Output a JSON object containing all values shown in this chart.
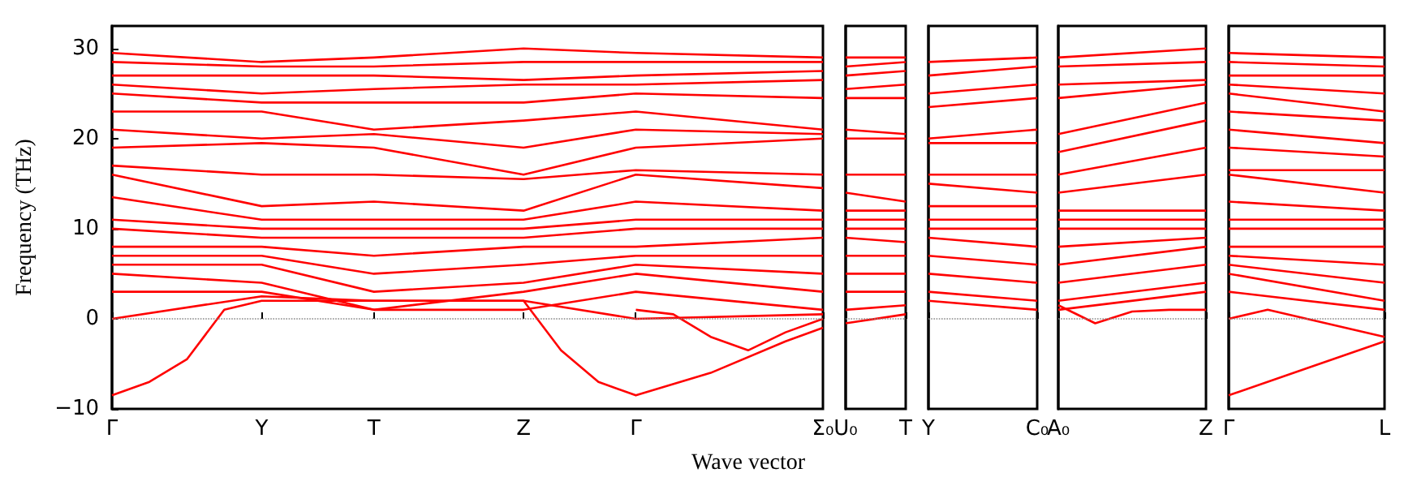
{
  "chart_data": [
    {
      "type": "line",
      "ylabel": "Frequency (THz)",
      "xlabel": "Wave vector",
      "color": "#ff0000",
      "ylim": [
        -10,
        32.5
      ],
      "yticks": [
        -10,
        0,
        10,
        20,
        30
      ],
      "categories": [
        "Γ",
        null,
        null,
        null,
        "Y",
        null,
        null,
        "T",
        null,
        null,
        null,
        "Z",
        null,
        null,
        "Γ",
        null,
        null,
        null,
        null,
        "Σ₀"
      ],
      "ref_lines": [
        {
          "axis": "y",
          "value": 0,
          "color": "#888888",
          "line_style": "dotted"
        }
      ],
      "series": [
        {
          "values": [
            29.5,
            null,
            null,
            null,
            28.5,
            null,
            null,
            29,
            null,
            null,
            null,
            30,
            null,
            null,
            29.5,
            null,
            null,
            null,
            null,
            29
          ]
        },
        {
          "values": [
            28.5,
            null,
            null,
            null,
            28,
            null,
            null,
            28,
            null,
            null,
            null,
            28.5,
            null,
            null,
            28.5,
            null,
            null,
            null,
            null,
            28.5
          ]
        },
        {
          "values": [
            27,
            null,
            null,
            null,
            27,
            null,
            null,
            27,
            null,
            null,
            null,
            26.5,
            null,
            null,
            27,
            null,
            null,
            null,
            null,
            27.5
          ]
        },
        {
          "values": [
            26,
            null,
            null,
            null,
            25,
            null,
            null,
            25.5,
            null,
            null,
            null,
            26,
            null,
            null,
            26,
            null,
            null,
            null,
            null,
            26.5
          ]
        },
        {
          "values": [
            25,
            null,
            null,
            null,
            24,
            null,
            null,
            24,
            null,
            null,
            null,
            24,
            null,
            null,
            25,
            null,
            null,
            null,
            null,
            24.5
          ]
        },
        {
          "values": [
            23,
            null,
            null,
            null,
            23,
            null,
            null,
            21,
            null,
            null,
            null,
            22,
            null,
            null,
            23,
            null,
            null,
            null,
            null,
            21
          ]
        },
        {
          "values": [
            21,
            null,
            null,
            null,
            20,
            null,
            null,
            20.5,
            null,
            null,
            null,
            19,
            null,
            null,
            21,
            null,
            null,
            null,
            null,
            20.5
          ]
        },
        {
          "values": [
            19,
            null,
            null,
            null,
            19.5,
            null,
            null,
            19,
            null,
            null,
            null,
            16,
            null,
            null,
            19,
            null,
            null,
            null,
            null,
            20
          ]
        },
        {
          "values": [
            17,
            null,
            null,
            null,
            16,
            null,
            null,
            16,
            null,
            null,
            null,
            15.5,
            null,
            null,
            16.5,
            null,
            null,
            null,
            null,
            16
          ]
        },
        {
          "values": [
            16,
            null,
            null,
            null,
            12.5,
            null,
            null,
            13,
            null,
            null,
            null,
            12,
            null,
            null,
            16,
            null,
            null,
            null,
            null,
            14.5
          ]
        },
        {
          "values": [
            13.5,
            null,
            null,
            null,
            11,
            null,
            null,
            11,
            null,
            null,
            null,
            11,
            null,
            null,
            13,
            null,
            null,
            null,
            null,
            12
          ]
        },
        {
          "values": [
            11,
            null,
            null,
            null,
            10,
            null,
            null,
            10,
            null,
            null,
            null,
            10,
            null,
            null,
            11,
            null,
            null,
            null,
            null,
            11
          ]
        },
        {
          "values": [
            10,
            null,
            null,
            null,
            9,
            null,
            null,
            9,
            null,
            null,
            null,
            9,
            null,
            null,
            10,
            null,
            null,
            null,
            null,
            10
          ]
        },
        {
          "values": [
            8,
            null,
            null,
            null,
            8,
            null,
            null,
            7,
            null,
            null,
            null,
            8,
            null,
            null,
            8,
            null,
            null,
            null,
            null,
            9
          ]
        },
        {
          "values": [
            7,
            null,
            null,
            null,
            7,
            null,
            null,
            5,
            null,
            null,
            null,
            6,
            null,
            null,
            7,
            null,
            null,
            null,
            null,
            7
          ]
        },
        {
          "values": [
            6,
            null,
            null,
            null,
            6,
            null,
            null,
            3,
            null,
            null,
            null,
            4,
            null,
            null,
            6,
            null,
            null,
            null,
            null,
            5
          ]
        },
        {
          "values": [
            5,
            null,
            null,
            null,
            4,
            null,
            null,
            1,
            null,
            null,
            null,
            3,
            null,
            null,
            5,
            null,
            null,
            null,
            null,
            3
          ]
        },
        {
          "values": [
            3,
            null,
            null,
            null,
            3,
            null,
            null,
            1,
            null,
            null,
            null,
            1,
            null,
            null,
            3,
            null,
            null,
            null,
            null,
            1
          ]
        },
        {
          "values": [
            0,
            null,
            null,
            null,
            2.5,
            null,
            null,
            2,
            null,
            null,
            null,
            2,
            null,
            null,
            0,
            null,
            null,
            null,
            null,
            0.5
          ]
        },
        {
          "values": [
            -8.5,
            -7,
            -4.5,
            1,
            2,
            null,
            null,
            2,
            null,
            null,
            null,
            2,
            -3.5,
            -7,
            -8.5,
            null,
            -6,
            null,
            -2.5,
            -1
          ]
        },
        {
          "values": [
            null,
            null,
            null,
            null,
            null,
            null,
            null,
            null,
            null,
            null,
            null,
            null,
            null,
            null,
            1,
            0.5,
            -2,
            -3.5,
            -1.5,
            0
          ]
        }
      ]
    },
    {
      "type": "line",
      "color": "#ff0000",
      "ylim": [
        -10,
        32.5
      ],
      "yticks": [
        -10,
        0,
        10,
        20,
        30
      ],
      "tick_labels": "x",
      "categories": [
        "U₀",
        "T"
      ],
      "ref_lines": [
        {
          "axis": "y",
          "value": 0,
          "color": "#888888",
          "line_style": "dotted"
        }
      ],
      "series": [
        {
          "values": [
            29,
            29
          ]
        },
        {
          "values": [
            28,
            28.5
          ]
        },
        {
          "values": [
            27,
            27.5
          ]
        },
        {
          "values": [
            25.5,
            26
          ]
        },
        {
          "values": [
            24.5,
            24.5
          ]
        },
        {
          "values": [
            21,
            20.5
          ]
        },
        {
          "values": [
            20,
            20
          ]
        },
        {
          "values": [
            16,
            16
          ]
        },
        {
          "values": [
            14,
            13
          ]
        },
        {
          "values": [
            12,
            12
          ]
        },
        {
          "values": [
            11,
            11
          ]
        },
        {
          "values": [
            10,
            10
          ]
        },
        {
          "values": [
            9,
            8.5
          ]
        },
        {
          "values": [
            7,
            7
          ]
        },
        {
          "values": [
            5,
            5
          ]
        },
        {
          "values": [
            3,
            3
          ]
        },
        {
          "values": [
            1,
            1.5
          ]
        },
        {
          "values": [
            -0.5,
            0.5
          ]
        }
      ]
    },
    {
      "type": "line",
      "color": "#ff0000",
      "ylim": [
        -10,
        32.5
      ],
      "yticks": [
        -10,
        0,
        10,
        20,
        30
      ],
      "tick_labels": "x",
      "categories": [
        "Y",
        "C₀"
      ],
      "ref_lines": [
        {
          "axis": "y",
          "value": 0,
          "color": "#888888",
          "line_style": "dotted"
        }
      ],
      "series": [
        {
          "values": [
            28.5,
            29
          ]
        },
        {
          "values": [
            27,
            28
          ]
        },
        {
          "values": [
            25,
            26
          ]
        },
        {
          "values": [
            23.5,
            24.5
          ]
        },
        {
          "values": [
            20,
            21
          ]
        },
        {
          "values": [
            19.5,
            19.5
          ]
        },
        {
          "values": [
            16,
            16
          ]
        },
        {
          "values": [
            15,
            14
          ]
        },
        {
          "values": [
            12.5,
            12.5
          ]
        },
        {
          "values": [
            11,
            11
          ]
        },
        {
          "values": [
            10,
            10
          ]
        },
        {
          "values": [
            9,
            8
          ]
        },
        {
          "values": [
            7,
            6
          ]
        },
        {
          "values": [
            5,
            4
          ]
        },
        {
          "values": [
            3,
            2
          ]
        },
        {
          "values": [
            2,
            1
          ]
        }
      ]
    },
    {
      "type": "line",
      "color": "#ff0000",
      "ylim": [
        -10,
        32.5
      ],
      "yticks": [
        -10,
        0,
        10,
        20,
        30
      ],
      "tick_labels": "x",
      "categories": [
        "A₀",
        null,
        null,
        null,
        "Z"
      ],
      "ref_lines": [
        {
          "axis": "y",
          "value": 0,
          "color": "#888888",
          "line_style": "dotted"
        }
      ],
      "series": [
        {
          "values": [
            29,
            null,
            null,
            null,
            30
          ]
        },
        {
          "values": [
            28,
            null,
            null,
            null,
            28.5
          ]
        },
        {
          "values": [
            26,
            null,
            null,
            null,
            26.5
          ]
        },
        {
          "values": [
            24.5,
            null,
            null,
            null,
            26
          ]
        },
        {
          "values": [
            20.5,
            null,
            null,
            null,
            24
          ]
        },
        {
          "values": [
            18.5,
            null,
            null,
            null,
            22
          ]
        },
        {
          "values": [
            16,
            null,
            null,
            null,
            19
          ]
        },
        {
          "values": [
            14,
            null,
            null,
            null,
            16
          ]
        },
        {
          "values": [
            12,
            null,
            null,
            null,
            12
          ]
        },
        {
          "values": [
            11,
            null,
            null,
            null,
            11
          ]
        },
        {
          "values": [
            10,
            null,
            null,
            null,
            10
          ]
        },
        {
          "values": [
            8,
            null,
            null,
            null,
            9
          ]
        },
        {
          "values": [
            6,
            null,
            null,
            null,
            8
          ]
        },
        {
          "values": [
            4,
            null,
            null,
            null,
            6
          ]
        },
        {
          "values": [
            2,
            null,
            null,
            null,
            4
          ]
        },
        {
          "values": [
            1,
            null,
            null,
            null,
            3
          ]
        },
        {
          "values": [
            1.5,
            -0.5,
            0.8,
            1,
            1
          ]
        }
      ]
    },
    {
      "type": "line",
      "color": "#ff0000",
      "ylim": [
        -10,
        32.5
      ],
      "yticks": [
        -10,
        0,
        10,
        20,
        30
      ],
      "tick_labels": "x",
      "categories": [
        "Γ",
        null,
        null,
        null,
        "L"
      ],
      "ref_lines": [
        {
          "axis": "y",
          "value": 0,
          "color": "#888888",
          "line_style": "dotted"
        }
      ],
      "series": [
        {
          "values": [
            29.5,
            null,
            null,
            null,
            29
          ]
        },
        {
          "values": [
            28.5,
            null,
            null,
            null,
            28
          ]
        },
        {
          "values": [
            27,
            null,
            null,
            null,
            27
          ]
        },
        {
          "values": [
            26,
            null,
            null,
            null,
            25
          ]
        },
        {
          "values": [
            25,
            null,
            null,
            null,
            23
          ]
        },
        {
          "values": [
            23,
            null,
            null,
            null,
            22
          ]
        },
        {
          "values": [
            21,
            null,
            null,
            null,
            19.5
          ]
        },
        {
          "values": [
            19,
            null,
            null,
            null,
            18
          ]
        },
        {
          "values": [
            16.5,
            null,
            null,
            null,
            16.5
          ]
        },
        {
          "values": [
            16,
            null,
            null,
            null,
            14
          ]
        },
        {
          "values": [
            13,
            null,
            null,
            null,
            12
          ]
        },
        {
          "values": [
            11,
            null,
            null,
            null,
            11
          ]
        },
        {
          "values": [
            10,
            null,
            null,
            null,
            10
          ]
        },
        {
          "values": [
            8,
            null,
            null,
            null,
            8
          ]
        },
        {
          "values": [
            7,
            null,
            null,
            null,
            6
          ]
        },
        {
          "values": [
            6,
            null,
            null,
            null,
            4
          ]
        },
        {
          "values": [
            5,
            null,
            null,
            null,
            2
          ]
        },
        {
          "values": [
            3,
            null,
            null,
            null,
            1
          ]
        },
        {
          "values": [
            -8.5,
            null,
            -5.5,
            null,
            -2.5
          ]
        },
        {
          "values": [
            0,
            1,
            null,
            null,
            -2
          ]
        }
      ]
    }
  ]
}
